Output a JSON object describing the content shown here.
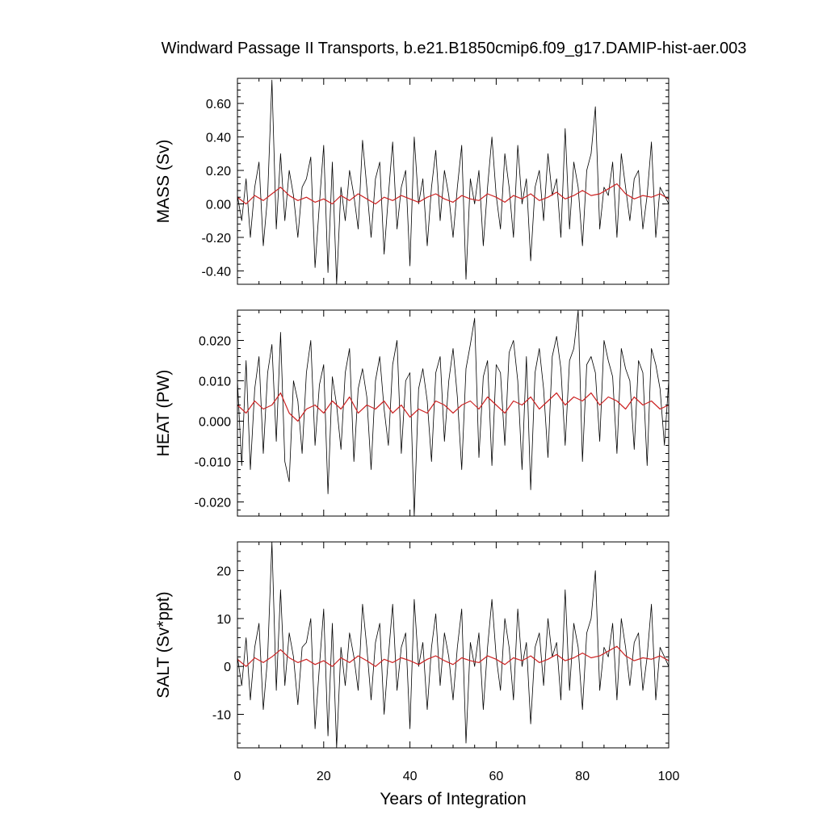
{
  "figure": {
    "title": "Windward Passage II Transports, b.e21.B1850cmip6.f09_g17.DAMIP-hist-aer.003",
    "xlabel": "Years of Integration"
  },
  "colors": {
    "raw": "#000000",
    "smooth": "#cc2222",
    "axes": "#000000",
    "background": "#ffffff"
  },
  "chart_data": [
    {
      "type": "line",
      "ylabel": "MASS (Sv)",
      "xlim": [
        0,
        100
      ],
      "ylim": [
        -0.48,
        0.75
      ],
      "x_ticks": [
        0,
        20,
        40,
        60,
        80,
        100
      ],
      "y_ticks": [
        -0.4,
        -0.2,
        0.0,
        0.2,
        0.4,
        0.6
      ],
      "y_tick_labels": [
        "-0.40",
        "-0.20",
        "0.00",
        "0.20",
        "0.40",
        "0.60"
      ],
      "grid": false,
      "series": [
        {
          "style": "raw monthly",
          "x": [
            0,
            1,
            2,
            3,
            4,
            5,
            6,
            7,
            8,
            9,
            10,
            11,
            12,
            13,
            14,
            15,
            16,
            17,
            18,
            19,
            20,
            21,
            22,
            23,
            24,
            25,
            26,
            27,
            28,
            29,
            30,
            31,
            32,
            33,
            34,
            35,
            36,
            37,
            38,
            39,
            40,
            41,
            42,
            43,
            44,
            45,
            46,
            47,
            48,
            49,
            50,
            51,
            52,
            53,
            54,
            55,
            56,
            57,
            58,
            59,
            60,
            61,
            62,
            63,
            64,
            65,
            66,
            67,
            68,
            69,
            70,
            71,
            72,
            73,
            74,
            75,
            76,
            77,
            78,
            79,
            80,
            81,
            82,
            83,
            84,
            85,
            86,
            87,
            88,
            89,
            90,
            91,
            92,
            93,
            94,
            95,
            96,
            97,
            98,
            99,
            100
          ],
          "values": [
            0.05,
            -0.1,
            0.15,
            -0.2,
            0.1,
            0.25,
            -0.25,
            0.05,
            0.74,
            -0.15,
            0.3,
            -0.1,
            0.2,
            0.05,
            -0.2,
            0.1,
            0.15,
            0.28,
            -0.38,
            0.0,
            0.35,
            -0.41,
            0.25,
            -0.48,
            0.1,
            -0.1,
            0.2,
            0.05,
            -0.15,
            0.38,
            0.1,
            -0.2,
            0.15,
            0.25,
            -0.3,
            0.05,
            0.37,
            -0.15,
            0.1,
            0.2,
            -0.37,
            0.4,
            0.0,
            0.15,
            -0.25,
            0.1,
            0.32,
            -0.1,
            0.2,
            0.05,
            -0.2,
            0.1,
            0.35,
            -0.45,
            0.15,
            0.0,
            0.2,
            -0.25,
            0.1,
            0.4,
            0.05,
            -0.15,
            0.3,
            0.1,
            -0.2,
            0.35,
            0.0,
            0.15,
            -0.34,
            0.1,
            0.2,
            -0.1,
            0.3,
            0.05,
            0.15,
            -0.2,
            0.45,
            -0.15,
            0.25,
            0.1,
            -0.25,
            0.2,
            0.3,
            0.58,
            -0.15,
            0.1,
            0.05,
            0.25,
            -0.2,
            0.3,
            0.1,
            -0.1,
            0.15,
            0.2,
            -0.15,
            0.05,
            0.37,
            -0.2,
            0.1,
            0.05,
            0.0
          ]
        },
        {
          "style": "smoothed",
          "x": [
            0,
            2,
            4,
            6,
            8,
            10,
            12,
            14,
            16,
            18,
            20,
            22,
            24,
            26,
            28,
            30,
            32,
            34,
            36,
            38,
            40,
            42,
            44,
            46,
            48,
            50,
            52,
            54,
            56,
            58,
            60,
            62,
            64,
            66,
            68,
            70,
            72,
            74,
            76,
            78,
            80,
            82,
            84,
            86,
            88,
            90,
            92,
            94,
            96,
            98,
            100
          ],
          "values": [
            0.04,
            0.0,
            0.05,
            0.02,
            0.06,
            0.1,
            0.05,
            0.02,
            0.04,
            0.01,
            0.03,
            0.0,
            0.05,
            0.02,
            0.06,
            0.03,
            0.0,
            0.04,
            0.02,
            0.05,
            0.03,
            0.01,
            0.04,
            0.06,
            0.03,
            0.01,
            0.05,
            0.03,
            0.02,
            0.06,
            0.04,
            0.01,
            0.05,
            0.03,
            0.06,
            0.02,
            0.04,
            0.07,
            0.03,
            0.05,
            0.08,
            0.05,
            0.06,
            0.09,
            0.12,
            0.06,
            0.03,
            0.05,
            0.04,
            0.06,
            0.03
          ]
        }
      ]
    },
    {
      "type": "line",
      "ylabel": "HEAT (PW)",
      "xlim": [
        0,
        100
      ],
      "ylim": [
        -0.0235,
        0.0275
      ],
      "x_ticks": [
        0,
        20,
        40,
        60,
        80,
        100
      ],
      "y_ticks": [
        -0.02,
        -0.01,
        0.0,
        0.01,
        0.02
      ],
      "y_tick_labels": [
        "-0.020",
        "-0.010",
        "0.000",
        "0.010",
        "0.020"
      ],
      "grid": false,
      "series": [
        {
          "style": "raw monthly",
          "x": [
            0,
            1,
            2,
            3,
            4,
            5,
            6,
            7,
            8,
            9,
            10,
            11,
            12,
            13,
            14,
            15,
            16,
            17,
            18,
            19,
            20,
            21,
            22,
            23,
            24,
            25,
            26,
            27,
            28,
            29,
            30,
            31,
            32,
            33,
            34,
            35,
            36,
            37,
            38,
            39,
            40,
            41,
            42,
            43,
            44,
            45,
            46,
            47,
            48,
            49,
            50,
            51,
            52,
            53,
            54,
            55,
            56,
            57,
            58,
            59,
            60,
            61,
            62,
            63,
            64,
            65,
            66,
            67,
            68,
            69,
            70,
            71,
            72,
            73,
            74,
            75,
            76,
            77,
            78,
            79,
            80,
            81,
            82,
            83,
            84,
            85,
            86,
            87,
            88,
            89,
            90,
            91,
            92,
            93,
            94,
            95,
            96,
            97,
            98,
            99,
            100
          ],
          "values": [
            0.01,
            -0.011,
            0.015,
            -0.012,
            0.008,
            0.016,
            -0.008,
            0.012,
            0.019,
            -0.005,
            0.022,
            -0.01,
            -0.015,
            0.01,
            0.005,
            -0.008,
            0.012,
            0.02,
            -0.006,
            0.009,
            0.014,
            -0.018,
            0.011,
            0.004,
            -0.007,
            0.012,
            0.018,
            -0.01,
            0.008,
            0.013,
            0.006,
            -0.012,
            0.01,
            0.016,
            0.003,
            -0.006,
            0.014,
            0.02,
            -0.008,
            0.01,
            0.012,
            -0.0235,
            0.008,
            0.013,
            0.005,
            -0.01,
            0.012,
            0.016,
            -0.005,
            0.01,
            0.018,
            0.006,
            -0.012,
            0.013,
            0.019,
            0.0255,
            -0.009,
            0.011,
            0.015,
            -0.011,
            0.014,
            0.012,
            -0.006,
            0.017,
            0.02,
            0.01,
            -0.012,
            0.016,
            -0.017,
            0.012,
            0.018,
            0.008,
            -0.009,
            0.016,
            0.021,
            0.013,
            -0.006,
            0.015,
            0.018,
            0.0275,
            -0.01,
            0.014,
            0.016,
            0.012,
            -0.005,
            0.02,
            0.015,
            0.011,
            -0.008,
            0.018,
            0.013,
            0.01,
            -0.007,
            0.015,
            0.012,
            -0.011,
            0.018,
            0.014,
            0.008,
            -0.006,
            0.01
          ]
        },
        {
          "style": "smoothed",
          "x": [
            0,
            2,
            4,
            6,
            8,
            10,
            12,
            14,
            16,
            18,
            20,
            22,
            24,
            26,
            28,
            30,
            32,
            34,
            36,
            38,
            40,
            42,
            44,
            46,
            48,
            50,
            52,
            54,
            56,
            58,
            60,
            62,
            64,
            66,
            68,
            70,
            72,
            74,
            76,
            78,
            80,
            82,
            84,
            86,
            88,
            90,
            92,
            94,
            96,
            98,
            100
          ],
          "values": [
            0.004,
            0.002,
            0.005,
            0.003,
            0.004,
            0.007,
            0.002,
            0.0,
            0.003,
            0.004,
            0.002,
            0.005,
            0.003,
            0.006,
            0.002,
            0.004,
            0.003,
            0.005,
            0.002,
            0.004,
            0.001,
            0.003,
            0.002,
            0.005,
            0.004,
            0.002,
            0.004,
            0.005,
            0.003,
            0.006,
            0.004,
            0.002,
            0.005,
            0.004,
            0.006,
            0.003,
            0.005,
            0.007,
            0.004,
            0.006,
            0.005,
            0.007,
            0.004,
            0.006,
            0.005,
            0.003,
            0.006,
            0.004,
            0.005,
            0.003,
            0.004
          ]
        }
      ]
    },
    {
      "type": "line",
      "ylabel": "SALT (Sv*ppt)",
      "xlim": [
        0,
        100
      ],
      "ylim": [
        -17,
        26
      ],
      "x_ticks": [
        0,
        20,
        40,
        60,
        80,
        100
      ],
      "x_tick_labels": [
        "0",
        "20",
        "40",
        "60",
        "80",
        "100"
      ],
      "y_ticks": [
        -10,
        0,
        10,
        20
      ],
      "y_tick_labels": [
        "-10",
        "0",
        "10",
        "20"
      ],
      "grid": false,
      "series": [
        {
          "style": "raw monthly",
          "x": [
            0,
            1,
            2,
            3,
            4,
            5,
            6,
            7,
            8,
            9,
            10,
            11,
            12,
            13,
            14,
            15,
            16,
            17,
            18,
            19,
            20,
            21,
            22,
            23,
            24,
            25,
            26,
            27,
            28,
            29,
            30,
            31,
            32,
            33,
            34,
            35,
            36,
            37,
            38,
            39,
            40,
            41,
            42,
            43,
            44,
            45,
            46,
            47,
            48,
            49,
            50,
            51,
            52,
            53,
            54,
            55,
            56,
            57,
            58,
            59,
            60,
            61,
            62,
            63,
            64,
            65,
            66,
            67,
            68,
            69,
            70,
            71,
            72,
            73,
            74,
            75,
            76,
            77,
            78,
            79,
            80,
            81,
            82,
            83,
            84,
            85,
            86,
            87,
            88,
            89,
            90,
            91,
            92,
            93,
            94,
            95,
            96,
            97,
            98,
            99,
            100
          ],
          "values": [
            2,
            -4,
            6,
            -7,
            4,
            9,
            -9,
            2,
            26,
            -5,
            16,
            -4,
            7,
            2,
            -8,
            4,
            5,
            10,
            -13,
            0,
            12,
            -14.5,
            9,
            -17,
            4,
            -4,
            7,
            2,
            -5,
            13,
            4,
            -7,
            5,
            9,
            -10,
            2,
            13,
            -5,
            4,
            7,
            -13,
            14,
            0,
            5,
            -9,
            4,
            11,
            -4,
            7,
            2,
            -7,
            4,
            12,
            -16,
            5,
            0,
            7,
            -9,
            4,
            14,
            2,
            -5,
            10,
            4,
            -7,
            12,
            0,
            5,
            -12,
            4,
            7,
            -4,
            10,
            2,
            5,
            -7,
            16,
            -5,
            9,
            4,
            -9,
            7,
            10,
            20,
            -5,
            4,
            2,
            9,
            -7,
            10,
            4,
            -4,
            5,
            7,
            -5,
            2,
            13,
            -7,
            4,
            2,
            0
          ]
        },
        {
          "style": "smoothed",
          "x": [
            0,
            2,
            4,
            6,
            8,
            10,
            12,
            14,
            16,
            18,
            20,
            22,
            24,
            26,
            28,
            30,
            32,
            34,
            36,
            38,
            40,
            42,
            44,
            46,
            48,
            50,
            52,
            54,
            56,
            58,
            60,
            62,
            64,
            66,
            68,
            70,
            72,
            74,
            76,
            78,
            80,
            82,
            84,
            86,
            88,
            90,
            92,
            94,
            96,
            98,
            100
          ],
          "values": [
            1.5,
            0,
            1.8,
            0.8,
            2,
            3.5,
            1.8,
            0.8,
            1.5,
            0.4,
            1.2,
            0,
            1.8,
            0.8,
            2.2,
            1.2,
            0,
            1.5,
            0.8,
            1.8,
            1.2,
            0.4,
            1.5,
            2.2,
            1.2,
            0.4,
            1.8,
            1.2,
            0.8,
            2.2,
            1.5,
            0.4,
            1.8,
            1.2,
            2.2,
            0.8,
            1.5,
            2.5,
            1.2,
            1.8,
            2.8,
            1.8,
            2.2,
            3.2,
            4.2,
            2.2,
            1.2,
            1.8,
            1.5,
            2.2,
            1.2
          ]
        }
      ]
    }
  ]
}
